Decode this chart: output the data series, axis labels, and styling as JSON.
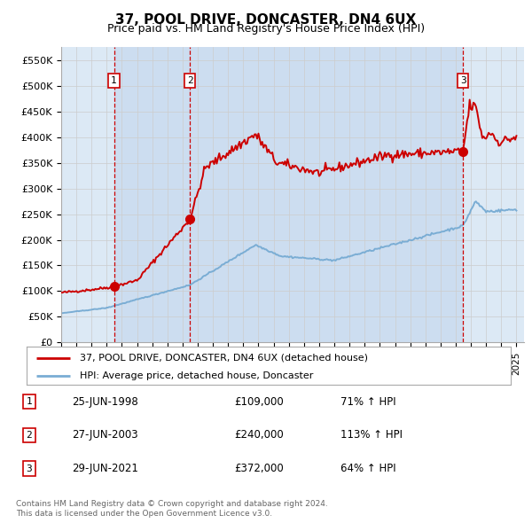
{
  "title": "37, POOL DRIVE, DONCASTER, DN4 6UX",
  "subtitle": "Price paid vs. HM Land Registry's House Price Index (HPI)",
  "ylabel_ticks": [
    "£0",
    "£50K",
    "£100K",
    "£150K",
    "£200K",
    "£250K",
    "£300K",
    "£350K",
    "£400K",
    "£450K",
    "£500K",
    "£550K"
  ],
  "ytick_values": [
    0,
    50000,
    100000,
    150000,
    200000,
    250000,
    300000,
    350000,
    400000,
    450000,
    500000,
    550000
  ],
  "ylim": [
    0,
    575000
  ],
  "xlim_start": 1995.0,
  "xlim_end": 2025.5,
  "xtick_years": [
    1995,
    1996,
    1997,
    1998,
    1999,
    2000,
    2001,
    2002,
    2003,
    2004,
    2005,
    2006,
    2007,
    2008,
    2009,
    2010,
    2011,
    2012,
    2013,
    2014,
    2015,
    2016,
    2017,
    2018,
    2019,
    2020,
    2021,
    2022,
    2023,
    2024,
    2025
  ],
  "purchases": [
    {
      "num": 1,
      "date_x": 1998.48,
      "price": 109000,
      "label": "25-JUN-1998",
      "amount": "£109,000",
      "pct": "71% ↑ HPI"
    },
    {
      "num": 2,
      "date_x": 2003.48,
      "price": 240000,
      "label": "27-JUN-2003",
      "amount": "£240,000",
      "pct": "113% ↑ HPI"
    },
    {
      "num": 3,
      "date_x": 2021.48,
      "price": 372000,
      "label": "29-JUN-2021",
      "amount": "£372,000",
      "pct": "64% ↑ HPI"
    }
  ],
  "red_line_color": "#cc0000",
  "blue_line_color": "#7aadd4",
  "grid_color": "#cccccc",
  "background_color": "#dce9f5",
  "shade_color": "#ccddf0",
  "plot_bg": "#ffffff",
  "vline_color": "#cc0000",
  "box_color": "#cc0000",
  "legend_label_red": "37, POOL DRIVE, DONCASTER, DN4 6UX (detached house)",
  "legend_label_blue": "HPI: Average price, detached house, Doncaster",
  "footer1": "Contains HM Land Registry data © Crown copyright and database right 2024.",
  "footer2": "This data is licensed under the Open Government Licence v3.0."
}
